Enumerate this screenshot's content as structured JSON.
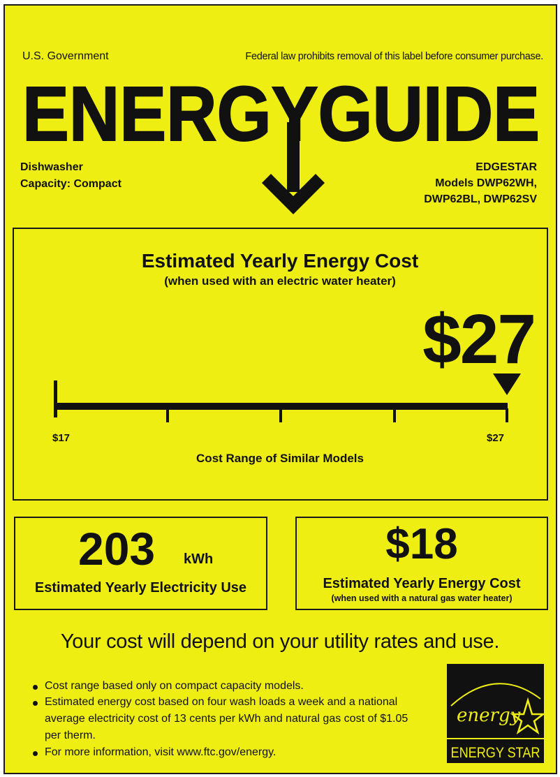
{
  "header": {
    "agency": "U.S. Government",
    "notice": "Federal law prohibits removal of this label before consumer purchase.",
    "title": "ENERGYGUIDE"
  },
  "product": {
    "type": "Dishwasher",
    "capacity": "Capacity: Compact",
    "brand": "EDGESTAR",
    "models_line1": "Models DWP62WH,",
    "models_line2": "DWP62BL, DWP62SV"
  },
  "main_cost": {
    "title": "Estimated Yearly Energy Cost",
    "subtitle": "(when used with an electric water heater)",
    "value": "$27",
    "range_min_label": "$17",
    "range_max_label": "$27",
    "range_min": 17,
    "range_max": 27,
    "marker_value": 27,
    "range_caption": "Cost Range of Similar Models"
  },
  "electricity": {
    "value": "203",
    "unit": "kWh",
    "label": "Estimated Yearly Electricity Use"
  },
  "gas_cost": {
    "value": "$18",
    "label": "Estimated Yearly Energy Cost",
    "sublabel": "(when used with a natural gas water heater)"
  },
  "footer": {
    "headline": "Your cost will depend on your utility rates and use.",
    "bullets": [
      "Cost range based only on compact capacity models.",
      "Estimated energy cost based on four wash loads a week and a national",
      "average electricity cost of 13 cents per kWh and natural gas cost of $1.05",
      "per therm.",
      "For more information, visit www.ftc.gov/energy."
    ]
  },
  "energy_star": {
    "script": "energy",
    "name": "ENERGY STAR"
  },
  "colors": {
    "label_background": "#efee12",
    "ink": "#111111"
  }
}
